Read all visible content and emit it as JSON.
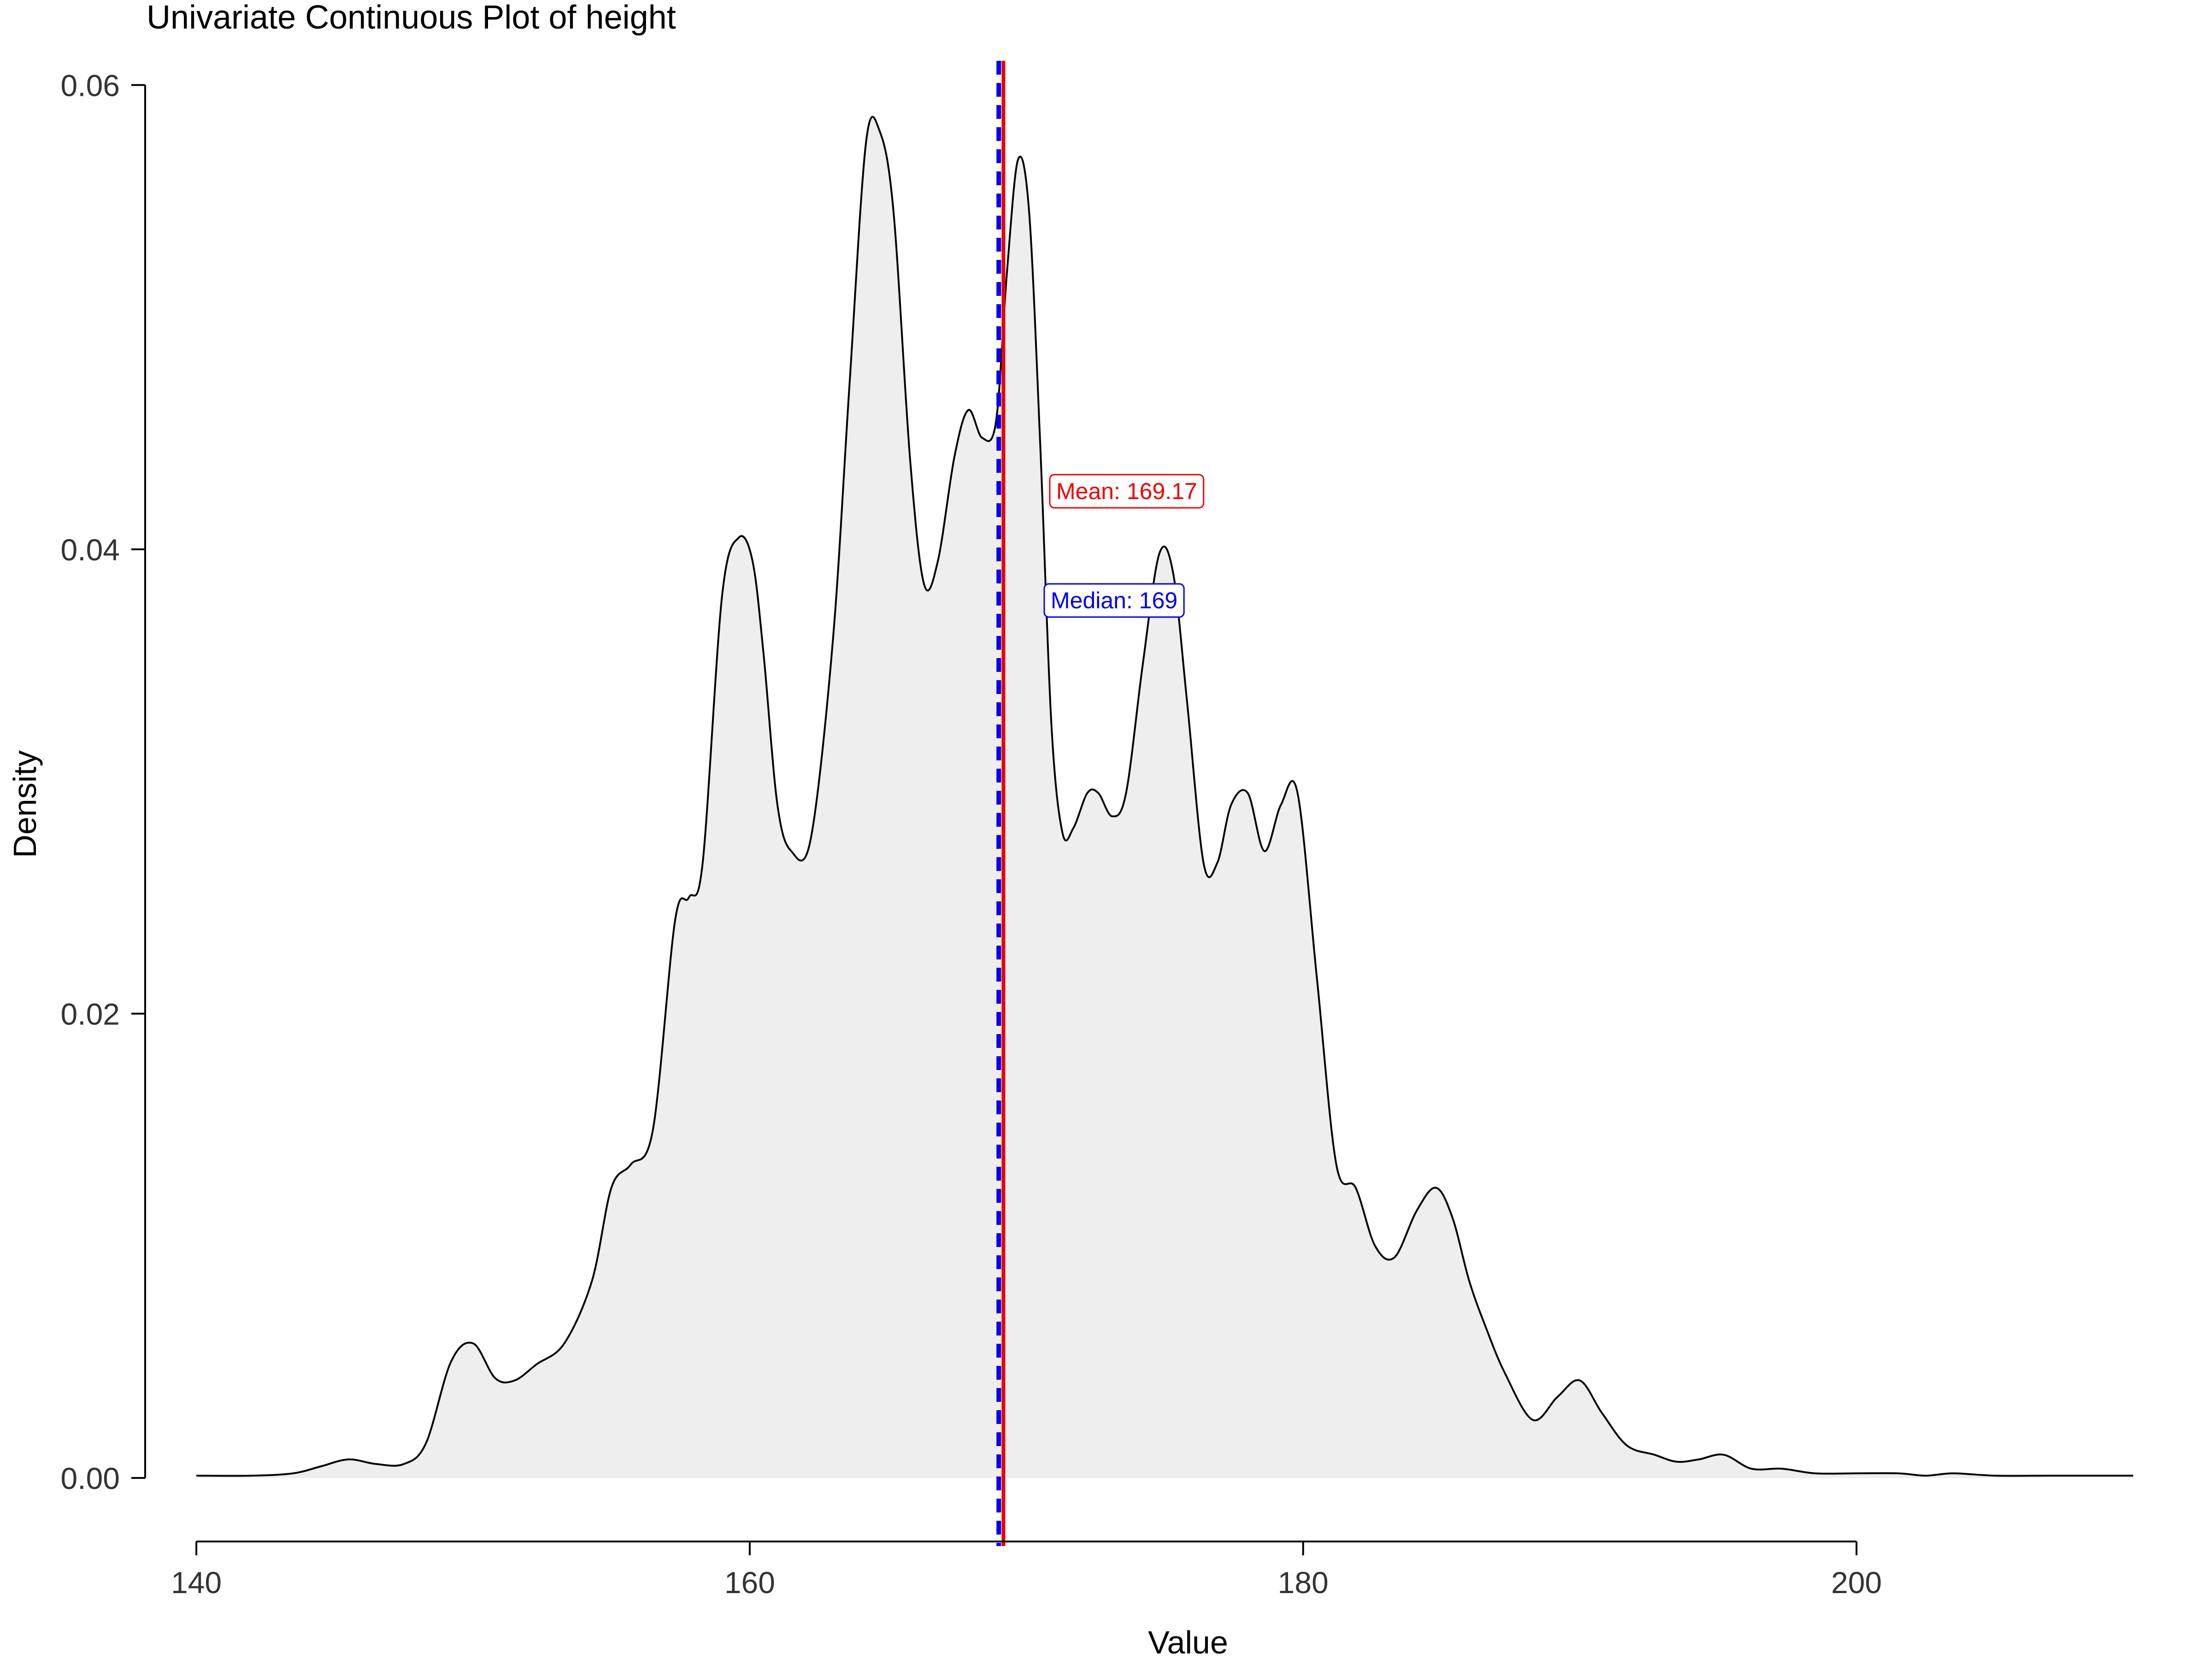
{
  "chart_data": {
    "type": "area",
    "title": "Univariate Continuous Plot of height",
    "xlabel": "Value",
    "ylabel": "Density",
    "xlim": [
      138.2,
      210.2
    ],
    "ylim": [
      -0.0022,
      0.0612
    ],
    "x_ticks": [
      140,
      160,
      180,
      200
    ],
    "x_tick_labels": [
      "140",
      "160",
      "180",
      "200"
    ],
    "y_ticks": [
      0.0,
      0.02,
      0.04,
      0.06
    ],
    "y_tick_labels": [
      "0.00",
      "0.02",
      "0.04",
      "0.06"
    ],
    "series": [
      {
        "x": [
          140,
          142,
          143.5,
          144.5,
          145.5,
          146.5,
          147.5,
          148.3,
          149.2,
          150,
          150.8,
          151.5,
          152.3,
          153.3,
          154.3,
          155,
          155.7,
          156.5,
          157.3,
          157.8,
          158.3,
          159,
          159.6,
          160.1,
          160.5,
          161,
          161.5,
          162.2,
          163,
          163.6,
          164.2,
          164.7,
          165.2,
          165.8,
          166.3,
          166.8,
          167.4,
          167.9,
          168.4,
          168.9,
          169.3,
          169.7,
          170.1,
          170.5,
          170.9,
          171.3,
          171.7,
          172.2,
          172.6,
          173.1,
          173.6,
          174.2,
          174.8,
          175.3,
          175.8,
          176.4,
          176.9,
          177.4,
          178,
          178.6,
          179.2,
          179.8,
          180.5,
          181.2,
          181.9,
          182.6,
          183.3,
          184.1,
          184.8,
          185.4,
          186,
          186.6,
          187.3,
          188.3,
          189.2,
          190,
          190.8,
          191.7,
          192.7,
          193.5,
          194.3,
          195.2,
          196.2,
          197.3,
          198.5,
          200,
          201.5,
          202.5,
          203.5,
          205,
          207,
          209,
          210
        ],
        "y": [
          0.0001,
          0.0001,
          0.0002,
          0.0005,
          0.0008,
          0.0006,
          0.0006,
          0.0015,
          0.005,
          0.0058,
          0.0043,
          0.0042,
          0.0049,
          0.0058,
          0.0085,
          0.0125,
          0.0135,
          0.015,
          0.024,
          0.025,
          0.0265,
          0.038,
          0.0405,
          0.0395,
          0.0355,
          0.029,
          0.027,
          0.0275,
          0.036,
          0.047,
          0.0575,
          0.058,
          0.0545,
          0.0438,
          0.0385,
          0.0395,
          0.044,
          0.046,
          0.0448,
          0.0455,
          0.052,
          0.0568,
          0.0545,
          0.0445,
          0.0325,
          0.0278,
          0.028,
          0.0295,
          0.0295,
          0.0285,
          0.0295,
          0.035,
          0.0398,
          0.039,
          0.0335,
          0.0265,
          0.0265,
          0.029,
          0.0295,
          0.027,
          0.029,
          0.0295,
          0.0215,
          0.0135,
          0.0125,
          0.01,
          0.0095,
          0.0115,
          0.0125,
          0.0112,
          0.0085,
          0.0065,
          0.0045,
          0.0025,
          0.0035,
          0.0042,
          0.0028,
          0.0014,
          0.001,
          0.0007,
          0.0008,
          0.001,
          0.0004,
          0.0004,
          0.0002,
          0.0002,
          0.0002,
          0.0001,
          0.0002,
          0.0001,
          0.0001,
          0.0001,
          0.0001
        ]
      }
    ],
    "fill_color": "#eeeeee",
    "line_color": "#000000",
    "reference_lines": [
      {
        "label": "Mean: 169.17",
        "value": 169.17,
        "color": "#ee0000",
        "style": "solid"
      },
      {
        "label": "Median: 169",
        "value": 169,
        "color": "#0000ee",
        "style": "dashed"
      }
    ],
    "grid": false,
    "legend": "none"
  }
}
